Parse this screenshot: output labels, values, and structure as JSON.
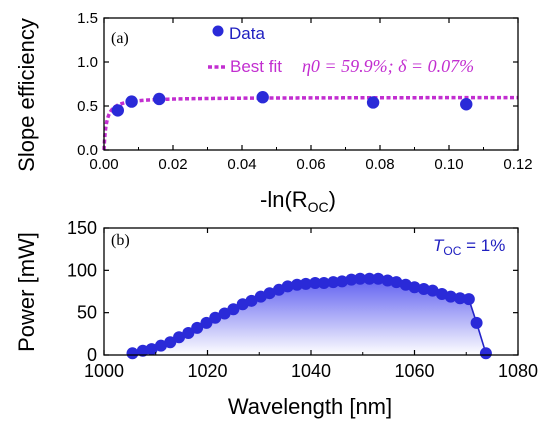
{
  "chart_data": [
    {
      "type": "scatter",
      "panel_label": "(a)",
      "xlabel": "-ln(R",
      "xlabel_sub": "OC",
      "xlabel_close": ")",
      "ylabel": "Slope efficiency",
      "xlim": [
        0,
        0.12
      ],
      "ylim": [
        0,
        1.5
      ],
      "xticks": [
        "0.00",
        "0.02",
        "0.04",
        "0.06",
        "0.08",
        "0.10",
        "0.12"
      ],
      "yticks": [
        "0.0",
        "0.5",
        "1.0",
        "1.5"
      ],
      "legend": {
        "data_label": "Data",
        "fit_label": "Best fit"
      },
      "fit_annotation": "η0 = 59.9%; δ = 0.07%",
      "fit_params": {
        "eta0": 0.599,
        "delta": 0.0007
      },
      "colors": {
        "data": "#2a2ad8",
        "fit": "#c22ed0"
      },
      "series": [
        {
          "name": "Data",
          "x": [
            0.004,
            0.008,
            0.016,
            0.046,
            0.078,
            0.105
          ],
          "y": [
            0.45,
            0.55,
            0.58,
            0.6,
            0.54,
            0.52
          ]
        }
      ]
    },
    {
      "type": "line",
      "panel_label": "(b)",
      "xlabel": "Wavelength [nm]",
      "ylabel": "Power [mW]",
      "xlim": [
        1000,
        1080
      ],
      "ylim": [
        0,
        150
      ],
      "xticks": [
        "1000",
        "1020",
        "1040",
        "1060",
        "1080"
      ],
      "yticks": [
        "0",
        "50",
        "100",
        "150"
      ],
      "annotation": {
        "prefix": "T",
        "sub": "OC",
        "suffix": " = 1%"
      },
      "colors": {
        "line": "#2323c8",
        "marker": "#2a2ad8",
        "fill_top": "#5a5af0",
        "fill_bottom": "#ffffff"
      },
      "series": [
        {
          "name": "",
          "x": [
            1005.5,
            1007.5,
            1009.2,
            1011,
            1012.8,
            1014.5,
            1016.3,
            1018,
            1019.8,
            1021.5,
            1023.3,
            1025,
            1026.8,
            1028.5,
            1030.3,
            1032,
            1033.8,
            1035.5,
            1037.3,
            1039,
            1040.8,
            1042.5,
            1044.3,
            1046,
            1047.8,
            1049.5,
            1051.3,
            1053,
            1054.8,
            1056.5,
            1058.3,
            1060,
            1061.8,
            1063.5,
            1065.3,
            1067,
            1068.8,
            1070.5,
            1072,
            1073.8
          ],
          "y": [
            2,
            5,
            7,
            11,
            15,
            21,
            26,
            32,
            38,
            44,
            49,
            54,
            60,
            64,
            69,
            73,
            77,
            81,
            83,
            84,
            85,
            85,
            86,
            87,
            89,
            90,
            90,
            90,
            88,
            86,
            83,
            80,
            78,
            76,
            72,
            69,
            67,
            66,
            38,
            2
          ]
        }
      ]
    }
  ]
}
